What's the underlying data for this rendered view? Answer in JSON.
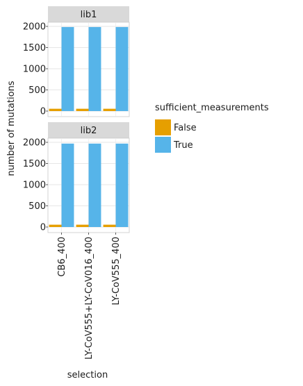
{
  "chart_data": {
    "type": "bar",
    "layout": "faceted-vertical",
    "xlabel": "selection",
    "ylabel": "number of mutations",
    "ylim": [
      0,
      2000
    ],
    "yticks": [
      0,
      500,
      1000,
      1500,
      2000
    ],
    "categories": [
      "CB6_400",
      "LY-CoV555+LY-CoV016_400",
      "LY-CoV555_400"
    ],
    "legend": {
      "title": "sufficient_measurements",
      "placement": "right",
      "entries": [
        {
          "label": "False",
          "color": "#E69F00"
        },
        {
          "label": "True",
          "color": "#56B4E9"
        }
      ]
    },
    "facets": [
      {
        "label": "lib1",
        "series": [
          {
            "name": "False",
            "color": "#E69F00",
            "values": [
              55,
              55,
              55
            ]
          },
          {
            "name": "True",
            "color": "#56B4E9",
            "values": [
              1985,
              1985,
              1985
            ]
          }
        ]
      },
      {
        "label": "lib2",
        "series": [
          {
            "name": "False",
            "color": "#E69F00",
            "values": [
              55,
              55,
              55
            ]
          },
          {
            "name": "True",
            "color": "#56B4E9",
            "values": [
              1970,
              1970,
              1970
            ]
          }
        ]
      }
    ],
    "grid": true
  }
}
